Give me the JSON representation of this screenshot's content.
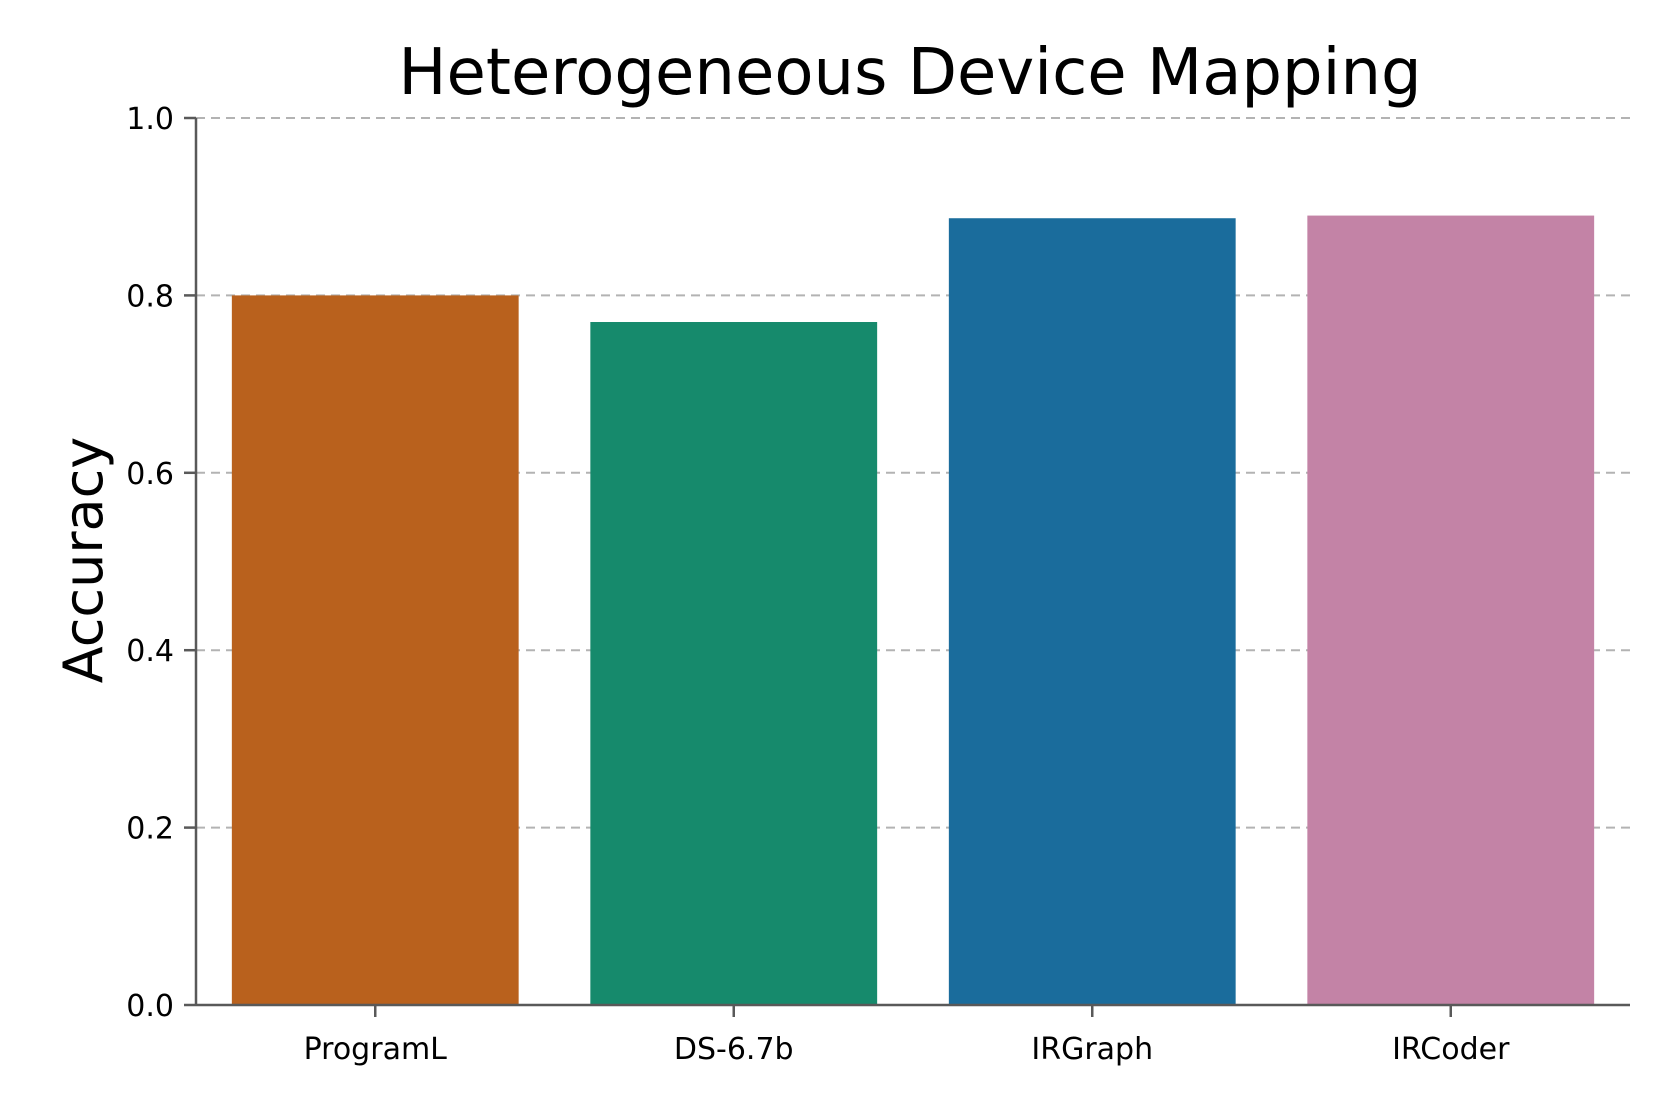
{
  "chart_data": {
    "type": "bar",
    "title": "Heterogeneous Device Mapping",
    "xlabel": "",
    "ylabel": "Accuracy",
    "categories": [
      "ProgramL",
      "DS-6.7b",
      "IRGraph",
      "IRCoder"
    ],
    "values": [
      0.8,
      0.77,
      0.887,
      0.89
    ],
    "colors": [
      "#b9611d",
      "#168a6c",
      "#1a6c9c",
      "#c383a6"
    ],
    "ylim": [
      0.0,
      1.0
    ],
    "yticks": [
      "0.0",
      "0.2",
      "0.4",
      "0.6",
      "0.8",
      "1.0"
    ],
    "grid": "horizontal dashed",
    "legend": "none"
  }
}
